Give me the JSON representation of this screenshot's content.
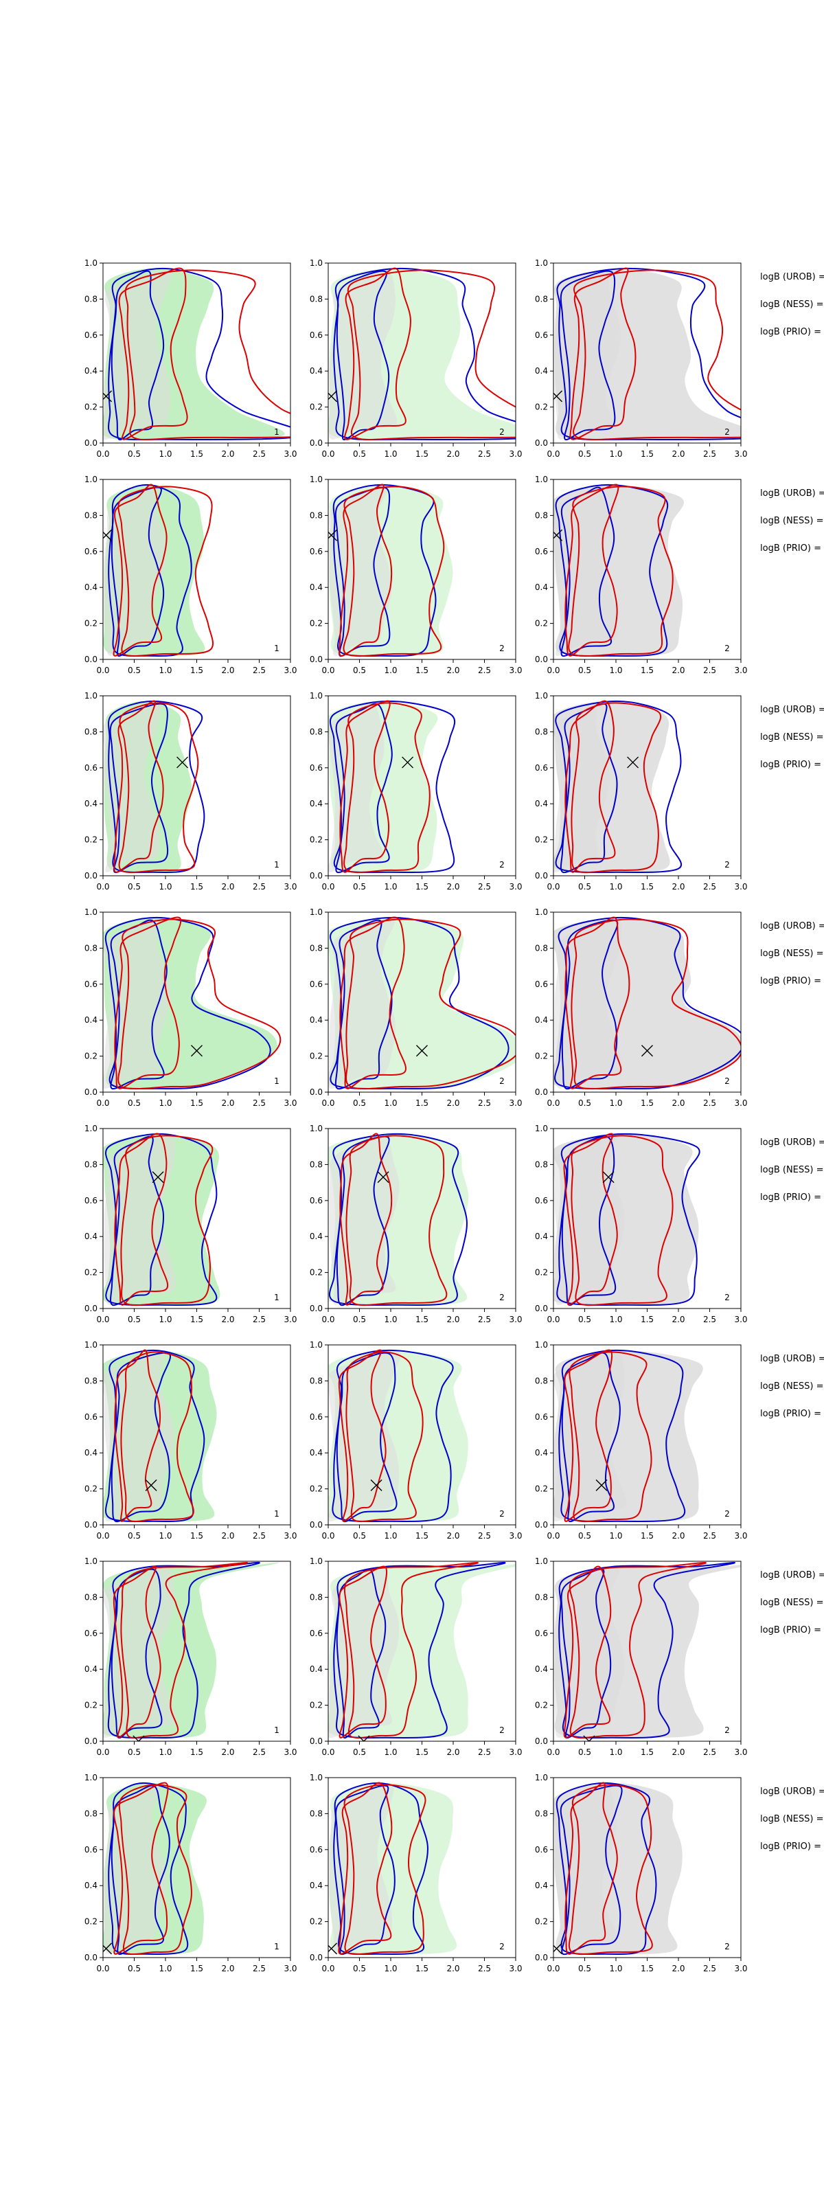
{
  "figure": {
    "grid": {
      "rows": 8,
      "cols": 3
    },
    "axes": {
      "xlim": [
        0,
        3.0
      ],
      "ylim": [
        0,
        1.0
      ],
      "xticks": [
        "0.0",
        "0.5",
        "1.0",
        "1.5",
        "2.0",
        "2.5",
        "3.0"
      ],
      "yticks": [
        "0.0",
        "0.2",
        "0.4",
        "0.6",
        "0.8",
        "1.0"
      ]
    },
    "side_labels": [
      "logB (UROB) =",
      "logB (NESS) =",
      "logB (PRIO) ="
    ],
    "colors": {
      "blue_contour": "#0000cc",
      "red_contour": "#dd0000",
      "green_fill": "#b9edb9",
      "green_fill_light": "#d6f5d6",
      "grey_fill": "#dcdcdc",
      "marker": "#000000"
    }
  },
  "chart_data": {
    "type": "contour",
    "panel_corner_labels": [
      "1",
      "2",
      "2"
    ],
    "rows": [
      {
        "marker": [
          0.05,
          0.26
        ],
        "blue_lo": [
          0.15,
          0.85
        ],
        "blue_hi": [
          0.1,
          1.8
        ],
        "red_lo": [
          0.3,
          1.2
        ],
        "red_hi": [
          0.4,
          2.3
        ],
        "fill": [
          0.0,
          1.6
        ],
        "tail": "bottom"
      },
      {
        "marker": [
          0.05,
          0.69
        ],
        "blue_lo": [
          0.15,
          0.85
        ],
        "blue_hi": [
          0.1,
          1.3
        ],
        "red_lo": [
          0.2,
          0.9
        ],
        "red_hi": [
          0.3,
          1.6
        ],
        "fill": [
          0.0,
          1.5
        ],
        "tail": "none"
      },
      {
        "marker": [
          1.27,
          0.63
        ],
        "blue_lo": [
          0.15,
          0.9
        ],
        "blue_hi": [
          0.1,
          1.5
        ],
        "red_lo": [
          0.2,
          0.85
        ],
        "red_hi": [
          0.3,
          1.4
        ],
        "fill": [
          0.0,
          1.3
        ],
        "tail": "none"
      },
      {
        "marker": [
          1.5,
          0.23
        ],
        "blue_lo": [
          0.15,
          0.9
        ],
        "blue_hi": [
          0.1,
          1.6
        ],
        "red_lo": [
          0.2,
          1.1
        ],
        "red_hi": [
          0.3,
          1.8
        ],
        "fill": [
          0.0,
          1.6
        ],
        "tail": "middle"
      },
      {
        "marker": [
          0.88,
          0.73
        ],
        "blue_lo": [
          0.15,
          0.85
        ],
        "blue_hi": [
          0.1,
          1.7
        ],
        "red_lo": [
          0.2,
          0.9
        ],
        "red_hi": [
          0.3,
          1.6
        ],
        "fill": [
          0.0,
          1.7
        ],
        "tail": "none"
      },
      {
        "marker": [
          0.77,
          0.22
        ],
        "blue_lo": [
          0.15,
          0.95
        ],
        "blue_hi": [
          0.1,
          1.5
        ],
        "red_lo": [
          0.2,
          0.8
        ],
        "red_hi": [
          0.3,
          1.3
        ],
        "fill": [
          0.0,
          1.7
        ],
        "tail": "none"
      },
      {
        "marker": [
          0.57,
          0.0
        ],
        "blue_lo": [
          0.15,
          0.8
        ],
        "blue_hi": [
          0.1,
          1.4
        ],
        "red_lo": [
          0.2,
          0.8
        ],
        "red_hi": [
          0.3,
          1.2
        ],
        "fill": [
          0.0,
          1.7
        ],
        "tail": "top"
      },
      {
        "marker": [
          0.05,
          0.05
        ],
        "blue_lo": [
          0.15,
          0.95
        ],
        "blue_hi": [
          0.1,
          1.2
        ],
        "red_lo": [
          0.2,
          0.9
        ],
        "red_hi": [
          0.3,
          1.3
        ],
        "fill": [
          0.0,
          1.5
        ],
        "tail": "none"
      }
    ],
    "column_variants": [
      {
        "fill_kind": "green",
        "blue_scale": 1.0,
        "red_scale": 1.0
      },
      {
        "fill_kind": "green_light",
        "blue_scale": 1.25,
        "red_scale": 1.1
      },
      {
        "fill_kind": "grey",
        "blue_scale": 1.3,
        "red_scale": 1.15
      }
    ]
  }
}
